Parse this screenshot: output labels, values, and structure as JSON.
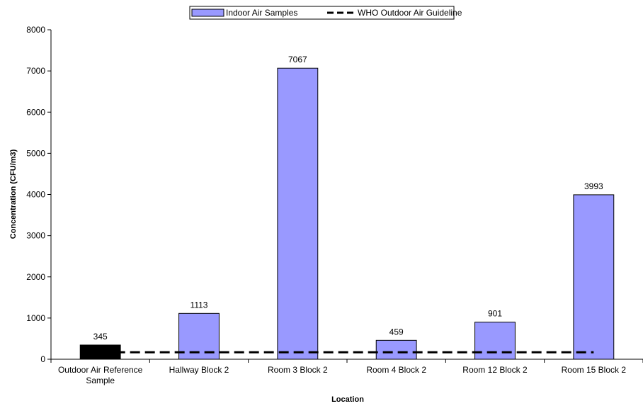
{
  "chart_data": {
    "type": "bar",
    "categories": [
      [
        "Outdoor Air Reference",
        "Sample"
      ],
      [
        "Hallway Block 2"
      ],
      [
        "Room 3 Block 2"
      ],
      [
        "Room 4 Block 2"
      ],
      [
        "Room 12 Block 2"
      ],
      [
        "Room 15 Block 2"
      ]
    ],
    "values": [
      345,
      1113,
      7067,
      459,
      901,
      3993
    ],
    "data_labels": [
      "345",
      "1113",
      "7067",
      "459",
      "901",
      "3993"
    ],
    "bar_colors": [
      "#000000",
      "#9999ff",
      "#9999ff",
      "#9999ff",
      "#9999ff",
      "#9999ff"
    ],
    "series": [
      {
        "name": "Indoor Air Samples",
        "kind": "bar",
        "color": "#9999ff"
      },
      {
        "name": "WHO Outdoor Air Guideline",
        "kind": "line",
        "style": "dashed",
        "color": "#000000",
        "value": 170
      }
    ],
    "xlabel": "Location",
    "ylabel": "Concentration (CFU/m3)",
    "ylim": [
      0,
      8000
    ],
    "yticks": [
      0,
      1000,
      2000,
      3000,
      4000,
      5000,
      6000,
      7000,
      8000
    ],
    "grid": false,
    "legend_position": "top-center"
  }
}
